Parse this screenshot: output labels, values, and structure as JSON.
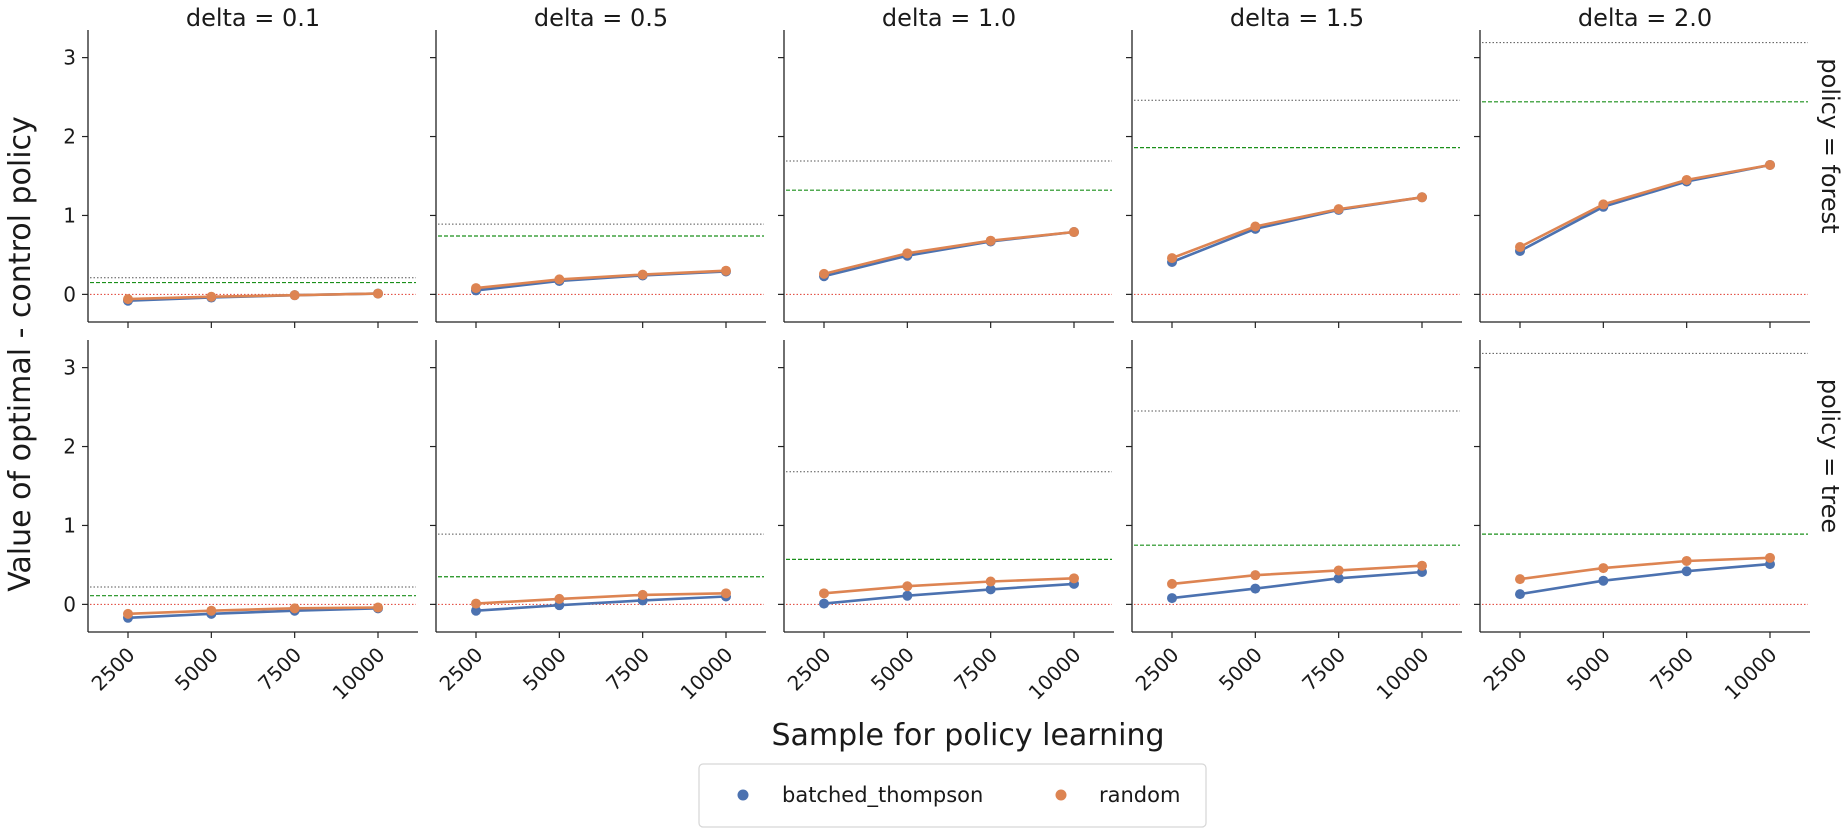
{
  "chart_data": {
    "type": "line",
    "xlabel": "Sample for policy learning",
    "ylabel": "Value of optimal - control policy",
    "x": [
      2500,
      5000,
      7500,
      10000
    ],
    "x_ticks": [
      "2500",
      "5000",
      "7500",
      "10000"
    ],
    "y_ticks": [
      "0",
      "1",
      "2",
      "3"
    ],
    "ylim": [
      -0.35,
      3.35
    ],
    "grid": false,
    "legend_position": "bottom-center",
    "column_labels": [
      "delta = 0.1",
      "delta = 0.5",
      "delta = 1.0",
      "delta = 1.5",
      "delta = 2.0"
    ],
    "row_labels": [
      "policy = forest",
      "policy = tree"
    ],
    "legend": [
      {
        "name": "batched_thompson",
        "color": "#4c72b0"
      },
      {
        "name": "random",
        "color": "#dd8452"
      }
    ],
    "reference_lines": {
      "zero_color": "#e03c31",
      "green_color": "#1a8f1a",
      "gray_color": "#555555"
    },
    "panels": [
      {
        "row": 0,
        "col": 0,
        "gray_line": 0.21,
        "green_line": 0.15,
        "series": [
          {
            "name": "batched_thompson",
            "values": [
              -0.08,
              -0.04,
              -0.01,
              0.01
            ]
          },
          {
            "name": "random",
            "values": [
              -0.06,
              -0.03,
              -0.01,
              0.01
            ]
          }
        ]
      },
      {
        "row": 0,
        "col": 1,
        "gray_line": 0.89,
        "green_line": 0.74,
        "series": [
          {
            "name": "batched_thompson",
            "values": [
              0.05,
              0.17,
              0.24,
              0.29
            ]
          },
          {
            "name": "random",
            "values": [
              0.08,
              0.19,
              0.25,
              0.3
            ]
          }
        ]
      },
      {
        "row": 0,
        "col": 2,
        "gray_line": 1.69,
        "green_line": 1.32,
        "series": [
          {
            "name": "batched_thompson",
            "values": [
              0.23,
              0.49,
              0.67,
              0.79
            ]
          },
          {
            "name": "random",
            "values": [
              0.26,
              0.52,
              0.68,
              0.79
            ]
          }
        ]
      },
      {
        "row": 0,
        "col": 3,
        "gray_line": 2.46,
        "green_line": 1.86,
        "series": [
          {
            "name": "batched_thompson",
            "values": [
              0.41,
              0.83,
              1.07,
              1.23
            ]
          },
          {
            "name": "random",
            "values": [
              0.46,
              0.86,
              1.08,
              1.23
            ]
          }
        ]
      },
      {
        "row": 0,
        "col": 4,
        "gray_line": 3.19,
        "green_line": 2.44,
        "series": [
          {
            "name": "batched_thompson",
            "values": [
              0.55,
              1.11,
              1.43,
              1.64
            ]
          },
          {
            "name": "random",
            "values": [
              0.6,
              1.14,
              1.45,
              1.64
            ]
          }
        ]
      },
      {
        "row": 1,
        "col": 0,
        "gray_line": 0.22,
        "green_line": 0.11,
        "series": [
          {
            "name": "batched_thompson",
            "values": [
              -0.17,
              -0.12,
              -0.08,
              -0.05
            ]
          },
          {
            "name": "random",
            "values": [
              -0.12,
              -0.08,
              -0.05,
              -0.04
            ]
          }
        ]
      },
      {
        "row": 1,
        "col": 1,
        "gray_line": 0.89,
        "green_line": 0.35,
        "series": [
          {
            "name": "batched_thompson",
            "values": [
              -0.08,
              -0.01,
              0.05,
              0.1
            ]
          },
          {
            "name": "random",
            "values": [
              0.01,
              0.07,
              0.12,
              0.14
            ]
          }
        ]
      },
      {
        "row": 1,
        "col": 2,
        "gray_line": 1.68,
        "green_line": 0.57,
        "series": [
          {
            "name": "batched_thompson",
            "values": [
              0.01,
              0.11,
              0.19,
              0.26
            ]
          },
          {
            "name": "random",
            "values": [
              0.14,
              0.23,
              0.29,
              0.33
            ]
          }
        ]
      },
      {
        "row": 1,
        "col": 3,
        "gray_line": 2.45,
        "green_line": 0.75,
        "series": [
          {
            "name": "batched_thompson",
            "values": [
              0.08,
              0.2,
              0.33,
              0.41
            ]
          },
          {
            "name": "random",
            "values": [
              0.26,
              0.37,
              0.43,
              0.49
            ]
          }
        ]
      },
      {
        "row": 1,
        "col": 4,
        "gray_line": 3.18,
        "green_line": 0.89,
        "series": [
          {
            "name": "batched_thompson",
            "values": [
              0.13,
              0.3,
              0.42,
              0.51
            ]
          },
          {
            "name": "random",
            "values": [
              0.32,
              0.46,
              0.55,
              0.59
            ]
          }
        ]
      }
    ]
  }
}
